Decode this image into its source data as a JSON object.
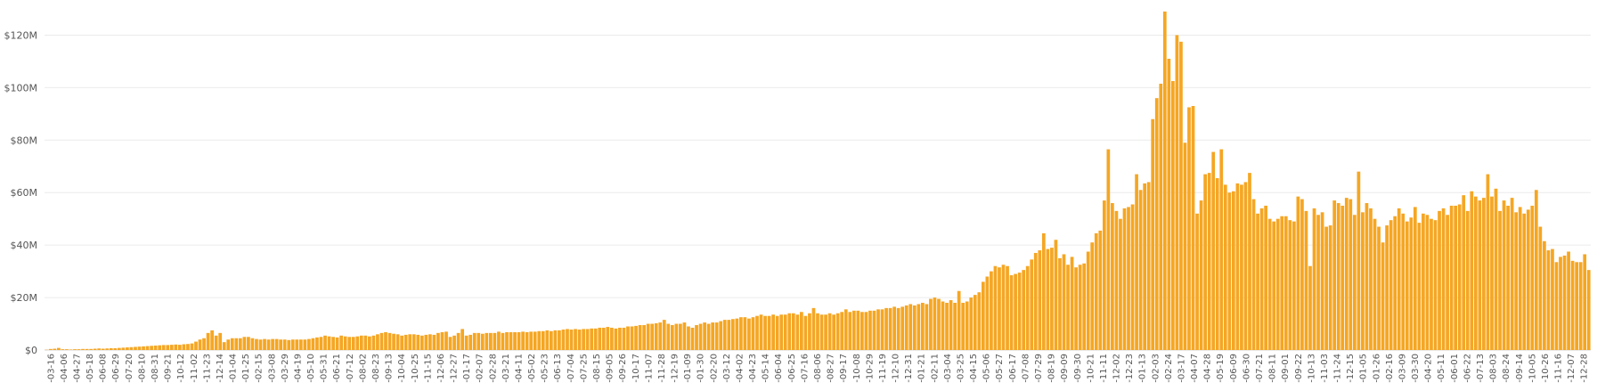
{
  "chart_data": {
    "type": "bar",
    "color": "#f5a623",
    "grid": true,
    "ylim": [
      0,
      130000000
    ],
    "y_ticks": [
      {
        "value": 0,
        "label": "$0"
      },
      {
        "value": 20000000,
        "label": "$20M"
      },
      {
        "value": 40000000,
        "label": "$40M"
      },
      {
        "value": 60000000,
        "label": "$60M"
      },
      {
        "value": 80000000,
        "label": "$80M"
      },
      {
        "value": 100000000,
        "label": "$100M"
      },
      {
        "value": 120000000,
        "label": "$120M"
      }
    ],
    "x_tick_labels": [
      "-03-16",
      "-04-06",
      "-04-27",
      "-05-18",
      "-06-08",
      "-06-29",
      "-07-20",
      "-08-10",
      "-08-31",
      "-09-21",
      "-10-12",
      "-11-02",
      "-11-23",
      "-12-14",
      "-01-04",
      "-01-25",
      "-02-15",
      "-03-08",
      "-03-29",
      "-04-19",
      "-05-10",
      "-05-31",
      "-06-21",
      "-07-12",
      "-08-02",
      "-08-23",
      "-09-13",
      "-10-04",
      "-10-25",
      "-11-15",
      "-12-06",
      "-12-27",
      "-01-17",
      "-02-07",
      "-02-28",
      "-03-21",
      "-04-11",
      "-05-02",
      "-05-23",
      "-06-13",
      "-07-04",
      "-07-25",
      "-08-15",
      "-09-05",
      "-09-26",
      "-10-17",
      "-11-07",
      "-11-28",
      "-12-19",
      "-01-09",
      "-01-30",
      "-02-20",
      "-03-12",
      "-04-02",
      "-04-23",
      "-05-14",
      "-06-04",
      "-06-25",
      "-07-16",
      "-08-06",
      "-08-27",
      "-09-17",
      "-10-08",
      "-10-29",
      "-11-19",
      "-12-10",
      "-12-31",
      "-01-21",
      "-02-11",
      "-03-04",
      "-03-25",
      "-04-15",
      "-05-06",
      "-05-27",
      "-06-17",
      "-07-08",
      "-07-29",
      "-08-19",
      "-09-09",
      "-09-30",
      "-10-21",
      "-11-11",
      "-12-02",
      "-12-23",
      "-01-13",
      "-02-03",
      "-02-24",
      "-03-17",
      "-04-07",
      "-04-28",
      "-05-19",
      "-06-09",
      "-06-30",
      "-07-21",
      "-08-11",
      "-09-01",
      "-09-22",
      "-10-13",
      "-11-03",
      "-11-24",
      "-12-15",
      "-01-05",
      "-01-26",
      "-02-16",
      "-03-09",
      "-03-30",
      "-04-20",
      "-05-11",
      "-06-01",
      "-06-22",
      "-07-13",
      "-08-03",
      "-08-24",
      "-09-14",
      "-10-05",
      "-10-26",
      "-11-16",
      "-12-07",
      "-12-28"
    ],
    "values_millions": [
      0.1,
      0.4,
      0.5,
      0.8,
      0.3,
      0.3,
      0.2,
      0.3,
      0.3,
      0.4,
      0.4,
      0.4,
      0.5,
      0.6,
      0.5,
      0.6,
      0.7,
      0.7,
      0.8,
      0.9,
      1.0,
      1.1,
      1.2,
      1.3,
      1.4,
      1.5,
      1.6,
      1.7,
      1.8,
      1.9,
      1.9,
      2.0,
      2.1,
      2.0,
      2.2,
      2.3,
      2.5,
      3.2,
      4.0,
      4.5,
      6.5,
      7.5,
      5.5,
      6.5,
      3.0,
      4.0,
      4.5,
      4.5,
      4.5,
      5.0,
      5.0,
      4.5,
      4.2,
      4.0,
      4.2,
      4.0,
      4.2,
      4.2,
      4.0,
      4.0,
      3.8,
      4.0,
      4.0,
      4.0,
      4.0,
      4.2,
      4.5,
      4.8,
      5.0,
      5.5,
      5.2,
      5.0,
      4.8,
      5.5,
      5.2,
      5.0,
      5.0,
      5.2,
      5.5,
      5.5,
      5.2,
      5.5,
      6.0,
      6.5,
      6.8,
      6.5,
      6.2,
      6.0,
      5.5,
      5.8,
      6.0,
      6.0,
      5.8,
      5.5,
      5.8,
      6.0,
      5.8,
      6.5,
      6.8,
      7.0,
      5.0,
      5.5,
      6.5,
      8.0,
      5.5,
      5.8,
      6.5,
      6.5,
      6.2,
      6.5,
      6.5,
      6.5,
      7.0,
      6.5,
      6.8,
      6.8,
      6.8,
      6.8,
      7.0,
      6.8,
      7.0,
      7.0,
      7.2,
      7.2,
      7.5,
      7.2,
      7.5,
      7.5,
      7.8,
      8.0,
      7.8,
      8.0,
      7.8,
      8.0,
      8.0,
      8.2,
      8.2,
      8.5,
      8.5,
      8.8,
      8.5,
      8.2,
      8.5,
      8.5,
      9.0,
      9.0,
      9.2,
      9.5,
      9.5,
      10.0,
      10.0,
      10.2,
      10.5,
      11.5,
      10.0,
      9.5,
      10.0,
      10.0,
      10.5,
      9.0,
      8.5,
      9.5,
      10.0,
      10.5,
      10.0,
      10.5,
      10.5,
      11.0,
      11.5,
      11.5,
      11.8,
      12.0,
      12.5,
      12.5,
      12.0,
      12.5,
      13.0,
      13.5,
      13.0,
      13.0,
      13.5,
      13.0,
      13.5,
      13.5,
      14.0,
      14.0,
      13.5,
      14.5,
      13.0,
      14.0,
      16.0,
      14.0,
      13.5,
      13.5,
      14.0,
      13.5,
      14.0,
      14.5,
      15.5,
      14.5,
      15.0,
      15.0,
      14.5,
      14.5,
      15.0,
      15.0,
      15.5,
      15.5,
      16.0,
      16.0,
      16.5,
      16.0,
      16.5,
      17.0,
      17.5,
      17.0,
      17.5,
      18.0,
      17.5,
      19.5,
      20.0,
      19.5,
      18.5,
      18.0,
      19.0,
      18.0,
      22.5,
      18.0,
      18.5,
      20.0,
      21.0,
      22.0,
      26.0,
      28.0,
      30.0,
      32.0,
      31.5,
      32.5,
      32.0,
      28.5,
      29.0,
      29.5,
      30.5,
      32.0,
      34.5,
      37.0,
      38.0,
      44.5,
      38.5,
      39.0,
      42.0,
      35.0,
      36.5,
      32.5,
      35.5,
      31.5,
      32.5,
      33.0,
      37.5,
      41.0,
      44.5,
      45.5,
      57.0,
      76.5,
      56.0,
      53.0,
      50.0,
      54.0,
      54.5,
      55.5,
      67.0,
      61.0,
      63.5,
      64.0,
      88.0,
      96.0,
      101.5,
      129.0,
      111.0,
      102.5,
      120.0,
      117.5,
      79.0,
      92.5,
      93.0,
      52.0,
      57.0,
      67.0,
      67.5,
      75.5,
      65.5,
      76.5,
      63.0,
      60.0,
      60.5,
      63.5,
      63.0,
      64.0,
      67.5,
      57.5,
      52.0,
      54.0,
      55.0,
      50.0,
      49.0,
      50.0,
      51.0,
      51.0,
      49.5,
      49.0,
      58.5,
      57.5,
      53.0,
      32.0,
      54.0,
      51.5,
      52.5,
      47.0,
      47.5,
      57.0,
      56.0,
      55.0,
      58.0,
      57.5,
      51.5,
      68.0,
      52.5,
      56.0,
      54.0,
      50.0,
      47.0,
      41.0,
      47.5,
      49.5,
      51.0,
      54.0,
      52.0,
      49.0,
      50.5,
      54.5,
      48.5,
      52.0,
      51.5,
      50.0,
      49.5,
      53.0,
      54.0,
      51.5,
      55.0,
      55.0,
      55.5,
      59.0,
      53.0,
      60.5,
      58.5,
      57.0,
      58.0,
      67.0,
      58.5,
      61.5,
      53.0,
      57.0,
      55.0,
      58.0,
      52.5,
      54.5,
      52.0,
      53.5,
      55.0,
      61.0,
      47.0,
      41.5,
      38.0,
      38.5,
      33.5,
      35.5,
      36.0,
      37.5,
      34.0,
      33.5,
      33.5,
      36.5,
      30.5
    ]
  }
}
